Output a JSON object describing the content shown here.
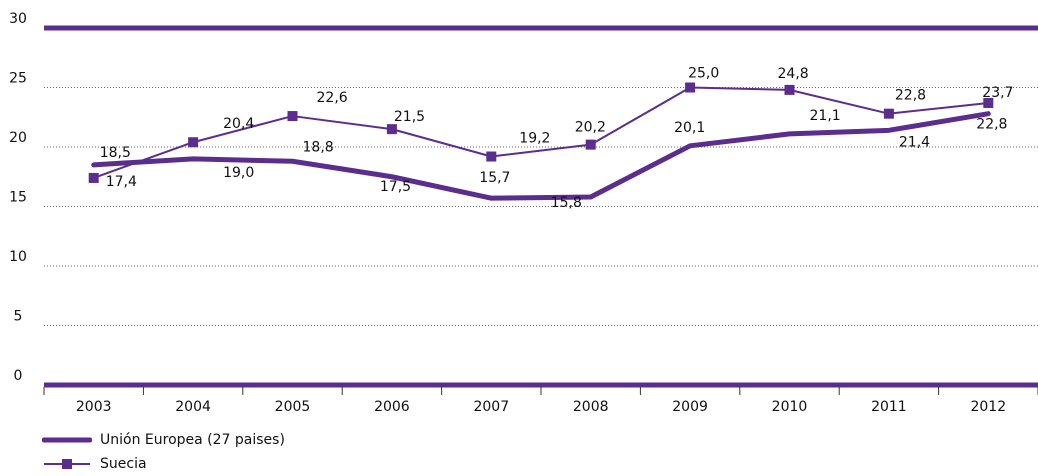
{
  "colors": {
    "ue": "#5b2d8e",
    "suecia": "#5b2d8e",
    "grid": "#666666",
    "text": "#111111"
  },
  "chart_data": {
    "type": "line",
    "title": "",
    "xlabel": "",
    "ylabel": "",
    "categories": [
      "2003",
      "2004",
      "2005",
      "2006",
      "2007",
      "2008",
      "2009",
      "2010",
      "2011",
      "2012"
    ],
    "ylim": [
      0,
      30
    ],
    "yticks": [
      "0",
      "5",
      "10",
      "15",
      "20",
      "25",
      "30"
    ],
    "grid": "horizontal dotted",
    "legend": "bottom-left",
    "series": [
      {
        "name": "Unión Europea (27 paises)",
        "values": [
          18.5,
          19.0,
          18.8,
          17.5,
          15.7,
          15.8,
          20.1,
          21.1,
          21.4,
          22.8
        ],
        "labels": [
          "18,5",
          "19,0",
          "18,8",
          "17,5",
          "15,7",
          "15,8",
          "20,1",
          "21,1",
          "21,4",
          "22,8"
        ]
      },
      {
        "name": "Suecia",
        "values": [
          17.4,
          20.4,
          22.6,
          21.5,
          19.2,
          20.2,
          25.0,
          24.8,
          22.8,
          23.7
        ],
        "labels": [
          "17,4",
          "20,4",
          "22,6",
          "21,5",
          "19,2",
          "20,2",
          "25,0",
          "24,8",
          "22,8",
          "23,7"
        ]
      }
    ]
  },
  "legend": {
    "ue_label": "Unión Europea (27 paises)",
    "suecia_label": "Suecia"
  }
}
